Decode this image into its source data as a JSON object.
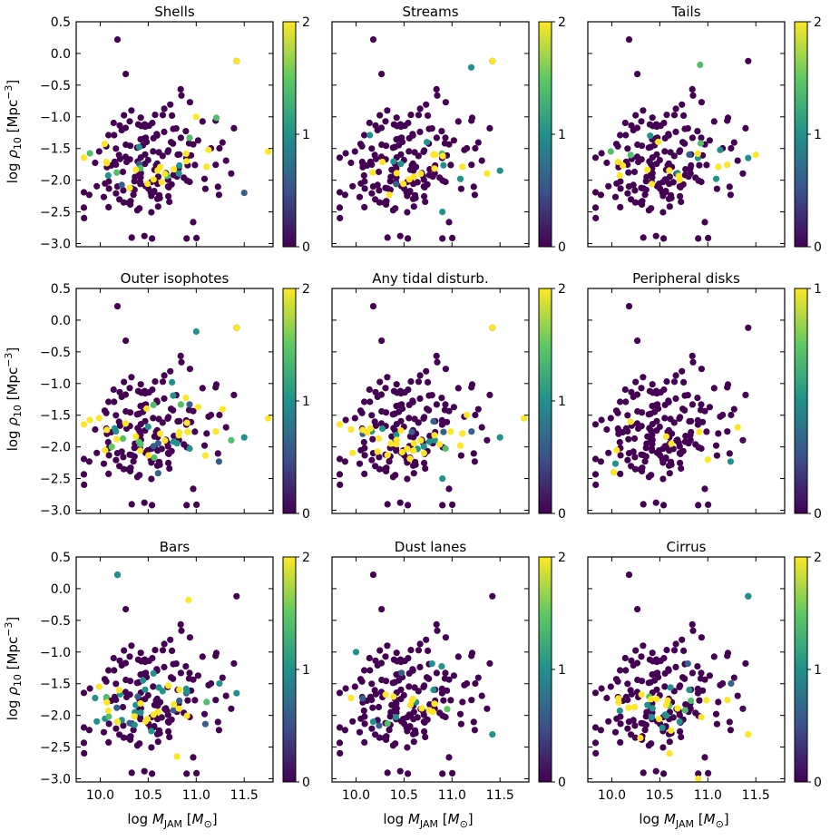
{
  "figure": {
    "xlabel": "log M_JAM [M_⊙]",
    "ylabel": "log ρ10 [Mpc⁻³]",
    "xlim": [
      9.75,
      11.8
    ],
    "ylim": [
      -3.05,
      0.5
    ],
    "xticks": [
      10.0,
      10.5,
      11.0,
      11.5
    ],
    "xtick_labels": [
      "10.0",
      "10.5",
      "11.0",
      "11.5"
    ],
    "yticks": [
      0.5,
      0.0,
      -0.5,
      -1.0,
      -1.5,
      -2.0,
      -2.5,
      -3.0
    ],
    "ytick_labels": [
      "0.5",
      "0.0",
      "−0.5",
      "−1.0",
      "−1.5",
      "−2.0",
      "−2.5",
      "−3.0"
    ],
    "colormap_stops": [
      "#440154",
      "#3b528b",
      "#21918c",
      "#5ec962",
      "#fde725"
    ]
  },
  "chart_data": [
    {
      "type": "scatter",
      "title": "Shells",
      "cmax": 2,
      "colorbar_ticks": [
        "0",
        "1",
        "2"
      ],
      "seed": 11,
      "n_high": 16,
      "n_mid": 12,
      "highlight": [
        [
          11.42,
          -0.12,
          2
        ],
        [
          11.5,
          -2.2,
          0.6
        ],
        [
          11.75,
          -1.55,
          2
        ],
        [
          11.0,
          -1.0,
          2
        ],
        [
          10.9,
          -1.7,
          2
        ]
      ]
    },
    {
      "type": "scatter",
      "title": "Streams",
      "cmax": 2,
      "colorbar_ticks": [
        "0",
        "1",
        "2"
      ],
      "seed": 11,
      "n_high": 14,
      "n_mid": 8,
      "highlight": [
        [
          11.42,
          -0.12,
          2
        ],
        [
          11.2,
          -0.22,
          1
        ],
        [
          11.5,
          -1.85,
          1
        ],
        [
          10.9,
          -2.5,
          1
        ]
      ]
    },
    {
      "type": "scatter",
      "title": "Tails",
      "cmax": 2,
      "colorbar_ticks": [
        "0",
        "1",
        "2"
      ],
      "seed": 11,
      "n_high": 12,
      "n_mid": 8,
      "highlight": [
        [
          10.92,
          -0.18,
          1.4
        ],
        [
          11.42,
          -1.65,
          1
        ],
        [
          11.5,
          -1.6,
          2
        ],
        [
          10.4,
          -1.3,
          1
        ]
      ]
    },
    {
      "type": "scatter",
      "title": "Outer isophotes",
      "cmax": 2,
      "colorbar_ticks": [
        "0",
        "1",
        "2"
      ],
      "seed": 11,
      "n_high": 22,
      "n_mid": 20,
      "highlight": [
        [
          11.42,
          -0.12,
          2
        ],
        [
          11.5,
          -1.85,
          1
        ],
        [
          11.75,
          -1.55,
          2
        ],
        [
          11.0,
          -0.18,
          1
        ],
        [
          10.12,
          -2.0,
          1.5
        ]
      ]
    },
    {
      "type": "scatter",
      "title": "Any tidal disturb.",
      "cmax": 2,
      "colorbar_ticks": [
        "0",
        "1",
        "2"
      ],
      "seed": 11,
      "n_high": 26,
      "n_mid": 14,
      "highlight": [
        [
          11.42,
          -0.12,
          2
        ],
        [
          11.75,
          -1.55,
          2
        ],
        [
          11.5,
          -1.85,
          1
        ],
        [
          10.9,
          -2.5,
          1
        ]
      ]
    },
    {
      "type": "scatter",
      "title": "Peripheral disks",
      "cmax": 1,
      "colorbar_ticks": [
        "0",
        "1"
      ],
      "seed": 11,
      "n_high": 5,
      "n_mid": 2,
      "highlight": [
        [
          10.02,
          -2.4,
          1
        ],
        [
          11.0,
          -2.2,
          1
        ],
        [
          10.62,
          -1.95,
          1
        ]
      ]
    },
    {
      "type": "scatter",
      "title": "Bars",
      "cmax": 2,
      "colorbar_ticks": [
        "0",
        "1",
        "2"
      ],
      "seed": 11,
      "n_high": 16,
      "n_mid": 28,
      "highlight": [
        [
          10.18,
          0.22,
          1
        ],
        [
          10.92,
          -0.18,
          2
        ],
        [
          10.8,
          -2.65,
          2
        ],
        [
          11.42,
          -1.65,
          1
        ]
      ]
    },
    {
      "type": "scatter",
      "title": "Dust lanes",
      "cmax": 2,
      "colorbar_ticks": [
        "0",
        "1",
        "2"
      ],
      "seed": 11,
      "n_high": 10,
      "n_mid": 10,
      "highlight": [
        [
          10.0,
          -1.0,
          1
        ],
        [
          10.95,
          -1.9,
          1.5
        ],
        [
          11.42,
          -2.3,
          1
        ]
      ]
    },
    {
      "type": "scatter",
      "title": "Cirrus",
      "cmax": 2,
      "colorbar_ticks": [
        "0",
        "1",
        "2"
      ],
      "seed": 11,
      "n_high": 16,
      "n_mid": 16,
      "highlight": [
        [
          11.42,
          -0.12,
          1
        ],
        [
          10.9,
          -3.0,
          2
        ],
        [
          11.42,
          -2.3,
          2
        ],
        [
          10.6,
          -2.6,
          2
        ]
      ]
    }
  ]
}
